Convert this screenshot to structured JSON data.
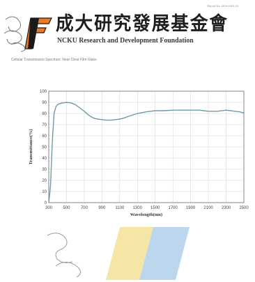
{
  "header": {
    "doc_no": "Report No. NCKU-RD-19",
    "cn_title": "成大研究發展基金會",
    "en_title": "NCKU Research and Development Foundation"
  },
  "report": {
    "caption": "Cellular Transmission Spectrum: Near Clear Film Glass"
  },
  "colors": {
    "series": "#6f9aa8",
    "logo_orange": "#f07a22",
    "stripe_yellow": "#f6e6a6",
    "stripe_blue": "#bcd6ee"
  },
  "chart_data": {
    "type": "line",
    "xlabel": "Wavelength(nm)",
    "ylabel": "Transmittance(%)",
    "xlim": [
      300,
      2500
    ],
    "ylim": [
      0,
      100
    ],
    "xticks": [
      300,
      500,
      700,
      900,
      1100,
      1300,
      1500,
      1700,
      1900,
      2100,
      2300,
      2500
    ],
    "yticks": [
      0,
      10,
      20,
      30,
      40,
      50,
      60,
      70,
      80,
      90,
      100
    ],
    "grid": true,
    "series": [
      {
        "x": [
          300,
          320,
          340,
          360,
          380,
          400,
          430,
          460,
          500,
          550,
          600,
          650,
          700,
          750,
          800,
          850,
          900,
          950,
          1000,
          1050,
          1100,
          1150,
          1200,
          1300,
          1400,
          1500,
          1600,
          1700,
          1800,
          1900,
          2000,
          2050,
          2100,
          2200,
          2300,
          2350,
          2400,
          2450,
          2500
        ],
        "y": [
          0,
          15,
          55,
          80,
          86,
          88,
          89,
          89.5,
          90,
          89.5,
          88,
          85,
          82,
          78.5,
          76,
          75,
          74.5,
          74,
          74,
          74.5,
          75,
          76,
          77.5,
          80,
          81.5,
          82.5,
          82.5,
          83,
          83,
          83,
          83,
          82.5,
          82,
          82,
          83,
          82.5,
          82,
          81.5,
          80.5
        ]
      }
    ]
  }
}
